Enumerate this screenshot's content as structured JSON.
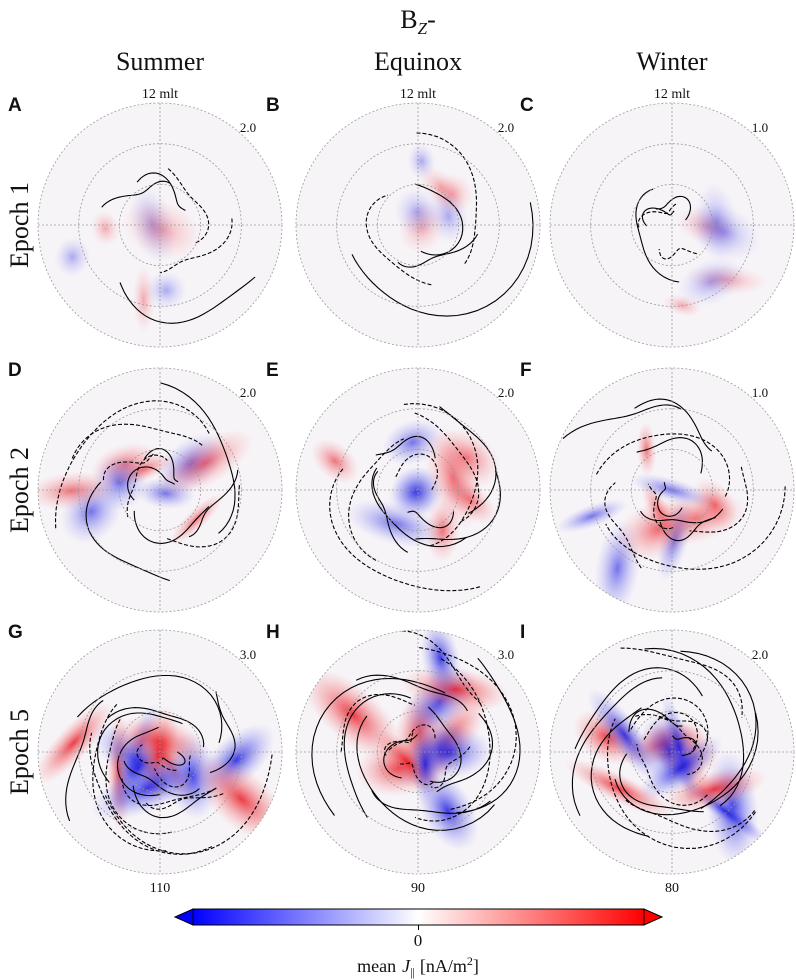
{
  "title": {
    "base": "B",
    "subscript": "Z",
    "suffix": "-"
  },
  "columns": [
    "Summer",
    "Equinox",
    "Winter"
  ],
  "rows": [
    "Epoch 1",
    "Epoch 2",
    "Epoch 5"
  ],
  "panels": [
    {
      "letter": "A",
      "top_label": "12 mlt",
      "contour_label": "2.0"
    },
    {
      "letter": "B",
      "top_label": "12 mlt",
      "contour_label": "2.0"
    },
    {
      "letter": "C",
      "top_label": "12 mlt",
      "contour_label": "1.0"
    },
    {
      "letter": "D",
      "contour_label": "2.0"
    },
    {
      "letter": "E",
      "contour_label": "2.0"
    },
    {
      "letter": "F",
      "contour_label": "1.0"
    },
    {
      "letter": "G",
      "contour_label": "3.0",
      "bottom_label": "110"
    },
    {
      "letter": "H",
      "contour_label": "3.0",
      "bottom_label": "90"
    },
    {
      "letter": "I",
      "contour_label": "2.0",
      "bottom_label": "80"
    }
  ],
  "colorbar": {
    "tick": "0",
    "label": {
      "prefix": "mean",
      "symbol": "J",
      "subscript": "||",
      "units": "[nA/m",
      "power": "2",
      "close": "]"
    }
  }
}
